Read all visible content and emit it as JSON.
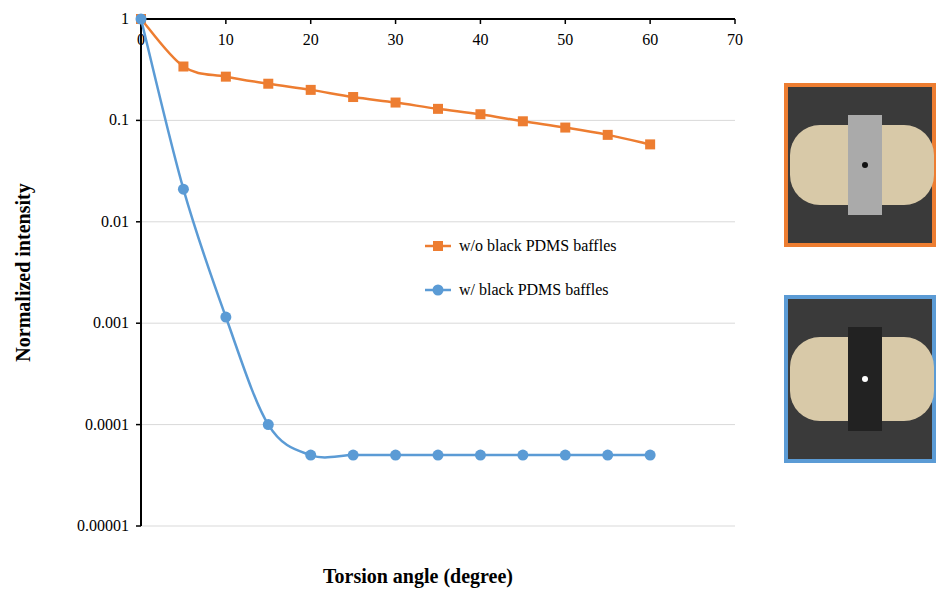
{
  "chart_data": {
    "type": "line",
    "x_label": "Torsion angle (degree)",
    "y_label": "Normalized intensity",
    "x": [
      0,
      5,
      10,
      15,
      20,
      25,
      30,
      35,
      40,
      45,
      50,
      55,
      60
    ],
    "series": [
      {
        "name": "w/o black PDMS baffles",
        "color": "#ed7d31",
        "marker": "square",
        "line_style": "smooth",
        "values": [
          1,
          0.34,
          0.27,
          0.23,
          0.2,
          0.17,
          0.15,
          0.13,
          0.115,
          0.098,
          0.085,
          0.072,
          0.058
        ]
      },
      {
        "name": "w/ black PDMS baffles",
        "color": "#5b9bd5",
        "marker": "circle",
        "line_style": "smooth",
        "values": [
          1,
          0.021,
          0.00115,
          0.0001,
          5e-05,
          5e-05,
          5e-05,
          5e-05,
          5e-05,
          5e-05,
          5e-05,
          5e-05,
          5e-05
        ]
      }
    ],
    "xlim": [
      0,
      70
    ],
    "xticks": [
      0,
      10,
      20,
      30,
      40,
      50,
      60,
      70
    ],
    "ylim": [
      1e-05,
      1
    ],
    "yticks": [
      1,
      0.1,
      0.01,
      0.001,
      0.0001,
      1e-05
    ],
    "log": "y",
    "grid": true,
    "legend": "right"
  }
}
